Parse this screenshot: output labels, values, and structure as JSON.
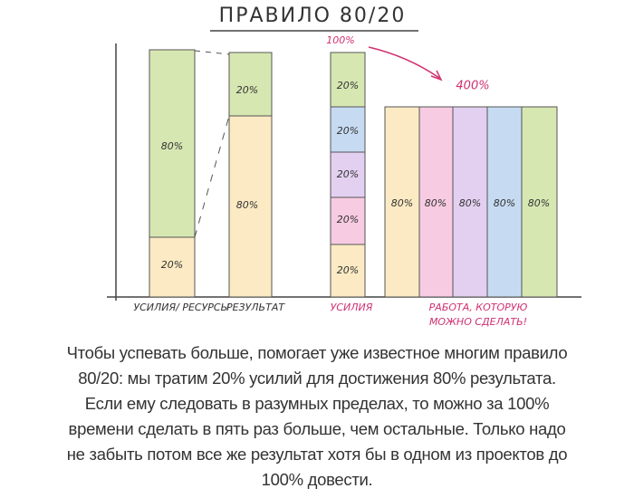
{
  "title": "ПРАВИЛО 80/20",
  "bar1": {
    "top": "80%",
    "bottom": "20%",
    "label": "УСИЛИЯ/ РЕСУРСЫ"
  },
  "bar2": {
    "top": "20%",
    "bottom": "80%",
    "label": "РЕЗУЛЬТАТ"
  },
  "bar3": {
    "total": "100%",
    "segments": [
      "20%",
      "20%",
      "20%",
      "20%",
      "20%"
    ],
    "label": "УСИЛИЯ"
  },
  "arrow_label": "400%",
  "columns": {
    "segments": [
      "80%",
      "80%",
      "80%",
      "80%",
      "80%"
    ],
    "label_line1": "РАБОТА, КОТОРУЮ",
    "label_line2": "МОЖНО СДЕЛАТЬ!"
  },
  "caption": [
    "Чтобы успевать больше, помогает уже известное многим правило",
    "80/20: мы тратим 20% усилий для достижения 80% результата.",
    "Если ему следовать в разумных пределах, то можно за 100%",
    "времени сделать в пять раз больше, чем остальные. Только надо",
    "не забыть потом все же результат хотя бы в одном из проектов до",
    "100% довести."
  ]
}
